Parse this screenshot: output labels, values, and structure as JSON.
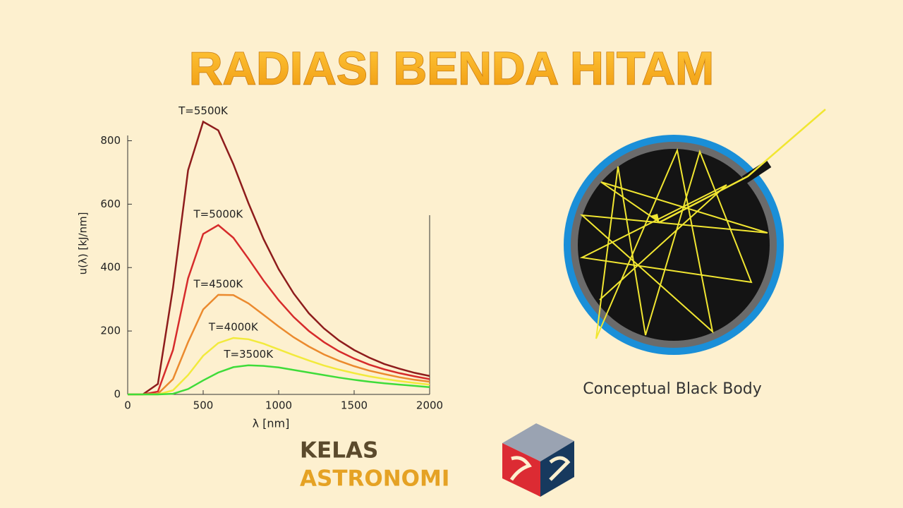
{
  "header": {
    "title": "RADIASI BENDA HITAM"
  },
  "chart_data": {
    "type": "line",
    "x_label": "λ [nm]",
    "y_label": "u(λ) [kJ/nm]",
    "x": [
      0,
      100,
      200,
      300,
      400,
      500,
      600,
      700,
      800,
      900,
      1000,
      1100,
      1200,
      1300,
      1400,
      1500,
      1600,
      1700,
      1800,
      1900,
      2000
    ],
    "series": [
      {
        "name": "T=5500K",
        "color": "#8e1c1c",
        "values": [
          0,
          0,
          33,
          336,
          707,
          860,
          833,
          726,
          603,
          490,
          395,
          318,
          256,
          208,
          170,
          140,
          116,
          96,
          81,
          68,
          58
        ]
      },
      {
        "name": "T=5000K",
        "color": "#d62b2b",
        "values": [
          0,
          0,
          9,
          140,
          366,
          506,
          534,
          494,
          428,
          359,
          297,
          244,
          200,
          165,
          136,
          113,
          94,
          79,
          67,
          57,
          48
        ]
      },
      {
        "name": "T=4500K",
        "color": "#eb8a2e",
        "values": [
          0,
          0,
          2,
          48,
          165,
          268,
          314,
          313,
          287,
          251,
          214,
          180,
          151,
          126,
          106,
          89,
          75,
          64,
          54,
          46,
          40
        ]
      },
      {
        "name": "T=4000K",
        "color": "#f2ea3c",
        "values": [
          0,
          0,
          0,
          13,
          61,
          122,
          162,
          178,
          174,
          160,
          142,
          124,
          107,
          91,
          78,
          67,
          57,
          49,
          42,
          36,
          31
        ]
      },
      {
        "name": "T=3500K",
        "color": "#3fdc3a",
        "values": [
          0,
          0,
          0,
          2,
          17,
          44,
          69,
          86,
          92,
          90,
          85,
          77,
          69,
          61,
          53,
          46,
          40,
          35,
          31,
          27,
          23
        ]
      }
    ],
    "xlim": [
      0,
      2000
    ],
    "xticks": [
      0,
      500,
      1000,
      1500,
      2000
    ],
    "ylim": [
      0,
      810
    ],
    "yticks": [
      0,
      200,
      400,
      600,
      800
    ]
  },
  "diagram": {
    "caption": "Conceptual Black Body"
  },
  "logo": {
    "line1": "KELAS",
    "line2": "ASTRONOMI"
  }
}
